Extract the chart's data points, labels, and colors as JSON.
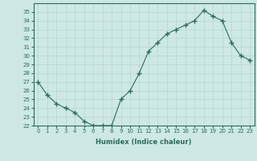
{
  "x": [
    0,
    1,
    2,
    3,
    4,
    5,
    6,
    7,
    8,
    9,
    10,
    11,
    12,
    13,
    14,
    15,
    16,
    17,
    18,
    19,
    20,
    21,
    22,
    23
  ],
  "y": [
    27,
    25.5,
    24.5,
    24,
    23.5,
    22.5,
    22,
    22,
    22,
    25,
    26,
    28,
    30.5,
    31.5,
    32.5,
    33,
    33.5,
    34,
    35.2,
    34.5,
    34,
    31.5,
    30,
    29.5
  ],
  "line_color": "#2e6b5e",
  "marker": "+",
  "marker_size": 4,
  "bg_color": "#cde8e5",
  "grid_color": "#b8d4d0",
  "xlabel": "Humidex (Indice chaleur)",
  "ylim": [
    22,
    36
  ],
  "xlim": [
    -0.5,
    23.5
  ],
  "yticks": [
    22,
    23,
    24,
    25,
    26,
    27,
    28,
    29,
    30,
    31,
    32,
    33,
    34,
    35
  ],
  "xticks": [
    0,
    1,
    2,
    3,
    4,
    5,
    6,
    7,
    8,
    9,
    10,
    11,
    12,
    13,
    14,
    15,
    16,
    17,
    18,
    19,
    20,
    21,
    22,
    23
  ],
  "xtick_labels": [
    "0",
    "1",
    "2",
    "3",
    "4",
    "5",
    "6",
    "7",
    "8",
    "9",
    "10",
    "11",
    "12",
    "13",
    "14",
    "15",
    "16",
    "17",
    "18",
    "19",
    "20",
    "21",
    "22",
    "23"
  ]
}
